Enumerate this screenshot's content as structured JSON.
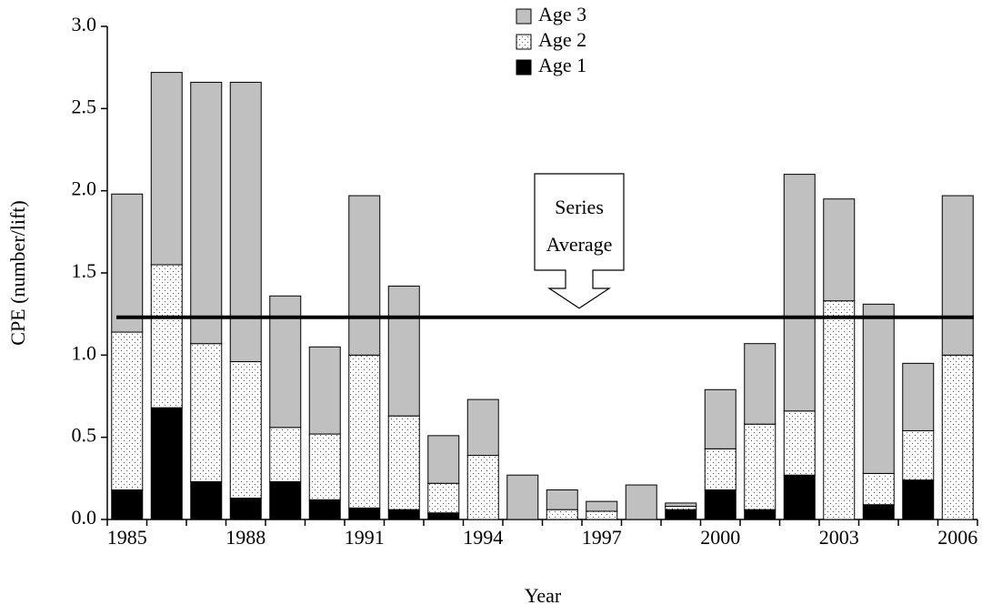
{
  "chart_data": {
    "type": "stacked_bar",
    "x_label": "Year",
    "y_label": "CPE (number/lift)",
    "categories": [
      "1985",
      null,
      null,
      "1988",
      null,
      null,
      "1991",
      null,
      null,
      "1994",
      null,
      null,
      "1997",
      null,
      null,
      "2000",
      null,
      null,
      "2003",
      null,
      null,
      "2006"
    ],
    "series": [
      {
        "name": "Age 1",
        "color": "#000000",
        "values": [
          0.18,
          0.68,
          0.23,
          0.13,
          0.23,
          0.12,
          0.07,
          0.06,
          0.04,
          0,
          0,
          0,
          0,
          0,
          0.06,
          0.18,
          0.06,
          0.27,
          0,
          0.09,
          0.24,
          0
        ]
      },
      {
        "name": "Age 2",
        "color": "#ffffff",
        "pattern": "dots",
        "values": [
          0.96,
          0.87,
          0.84,
          0.83,
          0.33,
          0.4,
          0.93,
          0.57,
          0.18,
          0.39,
          0,
          0.06,
          0.05,
          0,
          0.02,
          0.25,
          0.52,
          0.39,
          1.33,
          0.19,
          0.3,
          1.0
        ]
      },
      {
        "name": "Age 3",
        "color": "#c0c0c0",
        "values": [
          0.84,
          1.17,
          1.59,
          1.7,
          0.8,
          0.53,
          0.97,
          0.79,
          0.29,
          0.34,
          0.27,
          0.12,
          0.06,
          0.21,
          0.02,
          0.36,
          0.49,
          1.44,
          0.62,
          1.03,
          0.41,
          0.97
        ]
      }
    ],
    "reference_line": 1.23,
    "annotation_lines": [
      "Series",
      "Average"
    ],
    "ylim": [
      0,
      3
    ],
    "yticks": [
      {
        "value": 0,
        "label": "0.0"
      },
      0.5,
      {
        "value": 1,
        "label": "1.0"
      },
      1.5,
      {
        "value": 2,
        "label": "2.0"
      },
      2.5,
      {
        "value": 3,
        "label": "3.0"
      }
    ],
    "legend": "top"
  }
}
